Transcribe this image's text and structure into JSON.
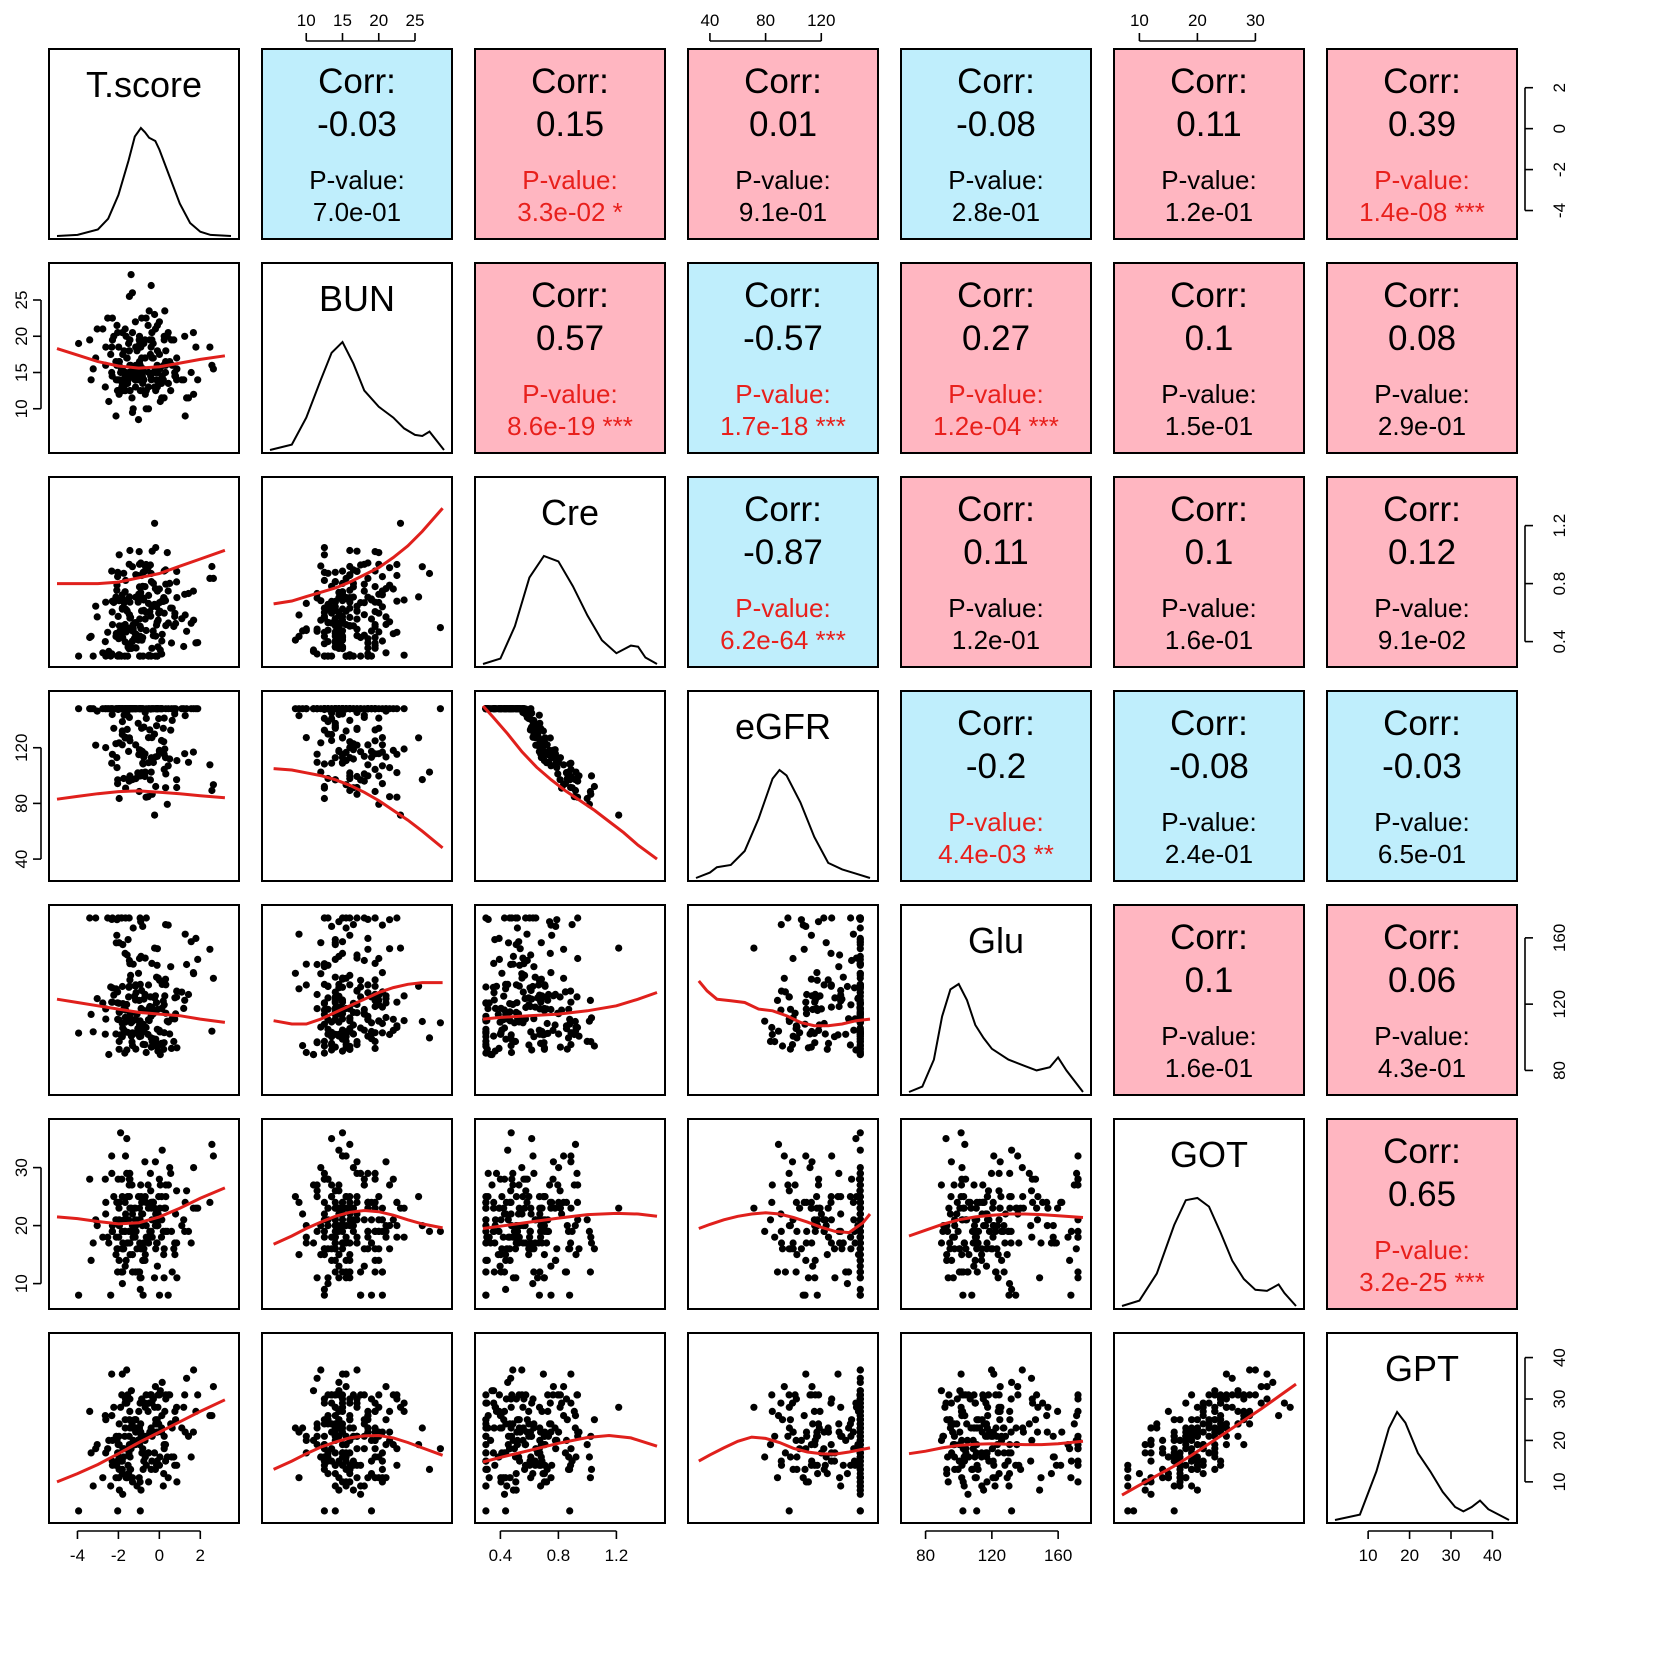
{
  "colors": {
    "positive": "#ffb6c1",
    "negative": "#bfeefc",
    "significant_text": "#e8201c",
    "smooth_line": "#e0201c",
    "frame": "#000000"
  },
  "chart_data": {
    "type": "scatter",
    "layout": "pairs-matrix",
    "variables": [
      {
        "name": "T.score",
        "range": [
          -5,
          3.5
        ],
        "ticks": [
          -4,
          -2,
          0,
          2
        ],
        "tick_labels": [
          "-4",
          "-2",
          "0",
          "2"
        ]
      },
      {
        "name": "BUN",
        "range": [
          5,
          29
        ],
        "ticks": [
          10,
          15,
          20,
          25
        ],
        "tick_labels": [
          "10",
          "15",
          "20",
          "25"
        ]
      },
      {
        "name": "Cre",
        "range": [
          0.28,
          1.48
        ],
        "ticks": [
          0.4,
          0.8,
          1.2
        ],
        "tick_labels": [
          "0.4",
          "0.8",
          "1.2"
        ]
      },
      {
        "name": "eGFR",
        "range": [
          30,
          155
        ],
        "ticks": [
          40,
          80,
          120
        ],
        "tick_labels": [
          "40",
          "80",
          "120"
        ]
      },
      {
        "name": "Glu",
        "range": [
          70,
          175
        ],
        "ticks": [
          80,
          120,
          160
        ],
        "tick_labels": [
          "80",
          "120",
          "160"
        ]
      },
      {
        "name": "GOT",
        "range": [
          7,
          37
        ],
        "ticks": [
          10,
          20,
          30
        ],
        "tick_labels": [
          "10",
          "20",
          "30"
        ]
      },
      {
        "name": "GPT",
        "range": [
          2,
          44
        ],
        "ticks": [
          10,
          20,
          30,
          40
        ],
        "tick_labels": [
          "10",
          "20",
          "30",
          "40"
        ]
      }
    ],
    "correlations": [
      {
        "row": 0,
        "col": 1,
        "corr_label": "Corr:",
        "corr": "-0.03",
        "p_label": "P-value:",
        "p": "7.0e-01",
        "stars": "",
        "significant": false
      },
      {
        "row": 0,
        "col": 2,
        "corr_label": "Corr:",
        "corr": "0.15",
        "p_label": "P-value:",
        "p": "3.3e-02",
        "stars": "*",
        "significant": true
      },
      {
        "row": 0,
        "col": 3,
        "corr_label": "Corr:",
        "corr": "0.01",
        "p_label": "P-value:",
        "p": "9.1e-01",
        "stars": "",
        "significant": false
      },
      {
        "row": 0,
        "col": 4,
        "corr_label": "Corr:",
        "corr": "-0.08",
        "p_label": "P-value:",
        "p": "2.8e-01",
        "stars": "",
        "significant": false
      },
      {
        "row": 0,
        "col": 5,
        "corr_label": "Corr:",
        "corr": "0.11",
        "p_label": "P-value:",
        "p": "1.2e-01",
        "stars": "",
        "significant": false
      },
      {
        "row": 0,
        "col": 6,
        "corr_label": "Corr:",
        "corr": "0.39",
        "p_label": "P-value:",
        "p": "1.4e-08",
        "stars": "***",
        "significant": true
      },
      {
        "row": 1,
        "col": 2,
        "corr_label": "Corr:",
        "corr": "0.57",
        "p_label": "P-value:",
        "p": "8.6e-19",
        "stars": "***",
        "significant": true
      },
      {
        "row": 1,
        "col": 3,
        "corr_label": "Corr:",
        "corr": "-0.57",
        "p_label": "P-value:",
        "p": "1.7e-18",
        "stars": "***",
        "significant": true
      },
      {
        "row": 1,
        "col": 4,
        "corr_label": "Corr:",
        "corr": "0.27",
        "p_label": "P-value:",
        "p": "1.2e-04",
        "stars": "***",
        "significant": true
      },
      {
        "row": 1,
        "col": 5,
        "corr_label": "Corr:",
        "corr": "0.1",
        "p_label": "P-value:",
        "p": "1.5e-01",
        "stars": "",
        "significant": false
      },
      {
        "row": 1,
        "col": 6,
        "corr_label": "Corr:",
        "corr": "0.08",
        "p_label": "P-value:",
        "p": "2.9e-01",
        "stars": "",
        "significant": false
      },
      {
        "row": 2,
        "col": 3,
        "corr_label": "Corr:",
        "corr": "-0.87",
        "p_label": "P-value:",
        "p": "6.2e-64",
        "stars": "***",
        "significant": true
      },
      {
        "row": 2,
        "col": 4,
        "corr_label": "Corr:",
        "corr": "0.11",
        "p_label": "P-value:",
        "p": "1.2e-01",
        "stars": "",
        "significant": false
      },
      {
        "row": 2,
        "col": 5,
        "corr_label": "Corr:",
        "corr": "0.1",
        "p_label": "P-value:",
        "p": "1.6e-01",
        "stars": "",
        "significant": false
      },
      {
        "row": 2,
        "col": 6,
        "corr_label": "Corr:",
        "corr": "0.12",
        "p_label": "P-value:",
        "p": "9.1e-02",
        "stars": "",
        "significant": false
      },
      {
        "row": 3,
        "col": 4,
        "corr_label": "Corr:",
        "corr": "-0.2",
        "p_label": "P-value:",
        "p": "4.4e-03",
        "stars": "**",
        "significant": true
      },
      {
        "row": 3,
        "col": 5,
        "corr_label": "Corr:",
        "corr": "-0.08",
        "p_label": "P-value:",
        "p": "2.4e-01",
        "stars": "",
        "significant": false
      },
      {
        "row": 3,
        "col": 6,
        "corr_label": "Corr:",
        "corr": "-0.03",
        "p_label": "P-value:",
        "p": "6.5e-01",
        "stars": "",
        "significant": false
      },
      {
        "row": 4,
        "col": 5,
        "corr_label": "Corr:",
        "corr": "0.1",
        "p_label": "P-value:",
        "p": "1.6e-01",
        "stars": "",
        "significant": false
      },
      {
        "row": 4,
        "col": 6,
        "corr_label": "Corr:",
        "corr": "0.06",
        "p_label": "P-value:",
        "p": "4.3e-01",
        "stars": "",
        "significant": false
      },
      {
        "row": 5,
        "col": 6,
        "corr_label": "Corr:",
        "corr": "0.65",
        "p_label": "P-value:",
        "p": "3.2e-25",
        "stars": "***",
        "significant": true
      }
    ],
    "densities": [
      {
        "var": "T.score",
        "x": [
          -5,
          -4,
          -3,
          -2.5,
          -2,
          -1.5,
          -1.2,
          -0.9,
          -0.7,
          -0.5,
          -0.2,
          0,
          0.5,
          1,
          1.5,
          2,
          2.5,
          3.5
        ],
        "y": [
          0,
          0.01,
          0.06,
          0.16,
          0.38,
          0.7,
          0.92,
          1.0,
          0.96,
          0.91,
          0.88,
          0.8,
          0.55,
          0.3,
          0.12,
          0.04,
          0.01,
          0
        ]
      },
      {
        "var": "BUN",
        "x": [
          5,
          8,
          10,
          12,
          13.5,
          15,
          16.5,
          18,
          20,
          22,
          23.5,
          25,
          26,
          27,
          29
        ],
        "y": [
          0,
          0.05,
          0.3,
          0.65,
          0.9,
          1.0,
          0.8,
          0.55,
          0.4,
          0.3,
          0.2,
          0.14,
          0.13,
          0.17,
          0
        ]
      },
      {
        "var": "Cre",
        "x": [
          0.28,
          0.4,
          0.5,
          0.6,
          0.7,
          0.8,
          0.9,
          1.0,
          1.1,
          1.2,
          1.3,
          1.35,
          1.4,
          1.48
        ],
        "y": [
          0,
          0.05,
          0.35,
          0.8,
          1.0,
          0.95,
          0.72,
          0.45,
          0.22,
          0.1,
          0.17,
          0.16,
          0.06,
          0
        ]
      },
      {
        "var": "eGFR",
        "x": [
          30,
          40,
          45,
          55,
          65,
          75,
          85,
          90,
          95,
          105,
          115,
          125,
          135,
          145,
          155
        ],
        "y": [
          0,
          0.05,
          0.1,
          0.12,
          0.25,
          0.55,
          0.92,
          1.0,
          0.95,
          0.7,
          0.38,
          0.14,
          0.08,
          0.04,
          0
        ]
      },
      {
        "var": "Glu",
        "x": [
          70,
          78,
          85,
          90,
          95,
          100,
          105,
          110,
          115,
          120,
          130,
          140,
          147,
          155,
          160,
          165,
          175
        ],
        "y": [
          0,
          0.05,
          0.3,
          0.7,
          0.95,
          1.0,
          0.85,
          0.62,
          0.5,
          0.4,
          0.3,
          0.24,
          0.2,
          0.23,
          0.32,
          0.2,
          0
        ]
      },
      {
        "var": "GOT",
        "x": [
          7,
          10,
          13,
          16,
          18,
          20,
          22,
          24,
          26,
          28,
          30,
          32,
          34,
          35,
          37
        ],
        "y": [
          0,
          0.05,
          0.3,
          0.75,
          0.98,
          1.0,
          0.92,
          0.68,
          0.42,
          0.25,
          0.15,
          0.14,
          0.2,
          0.12,
          0
        ]
      },
      {
        "var": "GPT",
        "x": [
          2,
          8,
          12,
          15,
          17,
          19,
          22,
          25,
          28,
          31,
          33,
          35,
          37,
          39,
          44
        ],
        "y": [
          0,
          0.05,
          0.45,
          0.85,
          1.0,
          0.9,
          0.62,
          0.45,
          0.26,
          0.12,
          0.08,
          0.12,
          0.18,
          0.1,
          0
        ]
      }
    ],
    "smooths": [
      {
        "row": 1,
        "col": 0,
        "x": [
          -5,
          -4,
          -3,
          -2,
          -1,
          0,
          1,
          2,
          3.2
        ],
        "y": [
          18.3,
          17.4,
          16.5,
          15.9,
          15.6,
          15.8,
          16.3,
          16.8,
          17.3
        ]
      },
      {
        "row": 2,
        "col": 0,
        "x": [
          -5,
          -4,
          -3,
          -2,
          -1,
          0,
          1,
          2,
          3.2
        ],
        "y": [
          0.8,
          0.8,
          0.8,
          0.81,
          0.84,
          0.87,
          0.92,
          0.97,
          1.03
        ]
      },
      {
        "row": 2,
        "col": 1,
        "x": [
          5.5,
          8,
          10,
          12,
          14,
          16,
          18,
          20,
          22,
          24,
          26,
          28.8
        ],
        "y": [
          0.66,
          0.68,
          0.71,
          0.74,
          0.77,
          0.81,
          0.86,
          0.91,
          0.98,
          1.06,
          1.16,
          1.32
        ]
      },
      {
        "row": 3,
        "col": 0,
        "x": [
          -5,
          -4,
          -3,
          -2,
          -1,
          0,
          1,
          2,
          3.2
        ],
        "y": [
          83,
          85,
          87,
          88.5,
          89,
          88,
          87,
          85.5,
          84
        ]
      },
      {
        "row": 3,
        "col": 1,
        "x": [
          5.5,
          8,
          10,
          12,
          14,
          16,
          18,
          20,
          22,
          24,
          26,
          28.8
        ],
        "y": [
          105,
          104,
          102,
          100,
          97,
          93,
          88,
          82,
          75,
          68,
          60,
          48
        ]
      },
      {
        "row": 3,
        "col": 2,
        "x": [
          0.28,
          0.35,
          0.45,
          0.55,
          0.65,
          0.75,
          0.85,
          0.95,
          1.05,
          1.15,
          1.25,
          1.35,
          1.48
        ],
        "y": [
          150,
          142,
          130,
          117,
          106,
          97,
          89,
          82,
          75,
          67,
          59,
          50,
          40
        ]
      },
      {
        "row": 4,
        "col": 0,
        "x": [
          -5,
          -4,
          -3,
          -2,
          -1,
          0,
          1,
          2,
          3.2
        ],
        "y": [
          123,
          121,
          119,
          117,
          115,
          114,
          113,
          111,
          109
        ]
      },
      {
        "row": 4,
        "col": 1,
        "x": [
          5.5,
          8,
          10,
          12,
          14,
          16,
          18,
          20,
          22,
          24,
          26,
          28.8
        ],
        "y": [
          110,
          108,
          108,
          111,
          115,
          119,
          123,
          127,
          130,
          132,
          133,
          133
        ]
      },
      {
        "row": 4,
        "col": 2,
        "x": [
          0.28,
          0.4,
          0.6,
          0.8,
          1.0,
          1.2,
          1.35,
          1.48
        ],
        "y": [
          111,
          112,
          113,
          114,
          116,
          119,
          123,
          127
        ]
      },
      {
        "row": 4,
        "col": 3,
        "x": [
          32,
          38,
          45,
          55,
          65,
          75,
          85,
          95,
          105,
          115,
          125,
          135,
          145,
          155
        ],
        "y": [
          134,
          128,
          123,
          122,
          121,
          117,
          116,
          113,
          109,
          107,
          107,
          108,
          110,
          111
        ]
      },
      {
        "row": 5,
        "col": 0,
        "x": [
          -5,
          -4,
          -3,
          -2,
          -1,
          0,
          1,
          2,
          3.2
        ],
        "y": [
          21.5,
          21.2,
          20.7,
          20.3,
          20.5,
          21.5,
          23,
          24.7,
          26.5
        ]
      },
      {
        "row": 5,
        "col": 1,
        "x": [
          5.5,
          8,
          10,
          12,
          14,
          16,
          18,
          20,
          22,
          24,
          26,
          28.8
        ],
        "y": [
          16.8,
          18.2,
          19.5,
          20.6,
          21.6,
          22.3,
          22.6,
          22.4,
          21.8,
          21,
          20.3,
          19.6
        ]
      },
      {
        "row": 5,
        "col": 2,
        "x": [
          0.28,
          0.4,
          0.6,
          0.8,
          1.0,
          1.2,
          1.35,
          1.48
        ],
        "y": [
          19.5,
          19.9,
          20.6,
          21.3,
          21.9,
          22.1,
          22,
          21.6
        ]
      },
      {
        "row": 5,
        "col": 3,
        "x": [
          32,
          40,
          50,
          60,
          70,
          80,
          90,
          100,
          110,
          120,
          130,
          140,
          150,
          155
        ],
        "y": [
          19.5,
          20.2,
          21,
          21.6,
          22,
          22.2,
          22,
          21.4,
          20.6,
          19.7,
          19,
          18.8,
          20.5,
          22
        ]
      },
      {
        "row": 5,
        "col": 4,
        "x": [
          70,
          80,
          90,
          100,
          110,
          120,
          130,
          140,
          150,
          160,
          175
        ],
        "y": [
          18.2,
          19.2,
          20.2,
          21,
          21.5,
          21.8,
          22,
          22,
          21.9,
          21.7,
          21.4
        ]
      },
      {
        "row": 6,
        "col": 0,
        "x": [
          -5,
          -4,
          -3,
          -2,
          -1,
          0,
          1,
          2,
          3.2
        ],
        "y": [
          10,
          12,
          14.2,
          16.8,
          19.5,
          22,
          24.5,
          27,
          29.8
        ]
      },
      {
        "row": 6,
        "col": 1,
        "x": [
          5.5,
          8,
          10,
          12,
          14,
          16,
          18,
          20,
          22,
          24,
          26,
          28.8
        ],
        "y": [
          13,
          15,
          16.8,
          18.4,
          19.6,
          20.6,
          21.1,
          21.2,
          20.6,
          19.5,
          18.2,
          16.4
        ]
      },
      {
        "row": 6,
        "col": 2,
        "x": [
          0.28,
          0.4,
          0.6,
          0.8,
          1.0,
          1.15,
          1.3,
          1.48
        ],
        "y": [
          14.8,
          15.9,
          17.6,
          19.3,
          20.7,
          21.2,
          20.6,
          18.6
        ]
      },
      {
        "row": 6,
        "col": 3,
        "x": [
          32,
          40,
          50,
          60,
          70,
          80,
          90,
          100,
          110,
          120,
          130,
          140,
          155
        ],
        "y": [
          15,
          16.5,
          18.2,
          19.8,
          20.8,
          20.5,
          19.5,
          18.1,
          17.2,
          16.8,
          16.7,
          17.2,
          18.2
        ]
      },
      {
        "row": 6,
        "col": 4,
        "x": [
          70,
          80,
          90,
          100,
          110,
          120,
          130,
          140,
          150,
          160,
          175
        ],
        "y": [
          16.8,
          17.4,
          18.2,
          18.8,
          19.1,
          19.2,
          19.1,
          19,
          19,
          19.2,
          19.8
        ]
      },
      {
        "row": 6,
        "col": 5,
        "x": [
          7,
          10,
          13,
          16,
          19,
          22,
          25,
          28,
          31,
          34,
          37
        ],
        "y": [
          6.8,
          9.2,
          11.5,
          13.8,
          16.4,
          19.2,
          22,
          24.8,
          27.6,
          30.6,
          33.6
        ]
      }
    ],
    "scatter_point_count": 200,
    "panel_grid": "7x7",
    "upper_panels": "correlation",
    "diagonal_panels": "density",
    "lower_panels": "scatter with smooth line"
  }
}
